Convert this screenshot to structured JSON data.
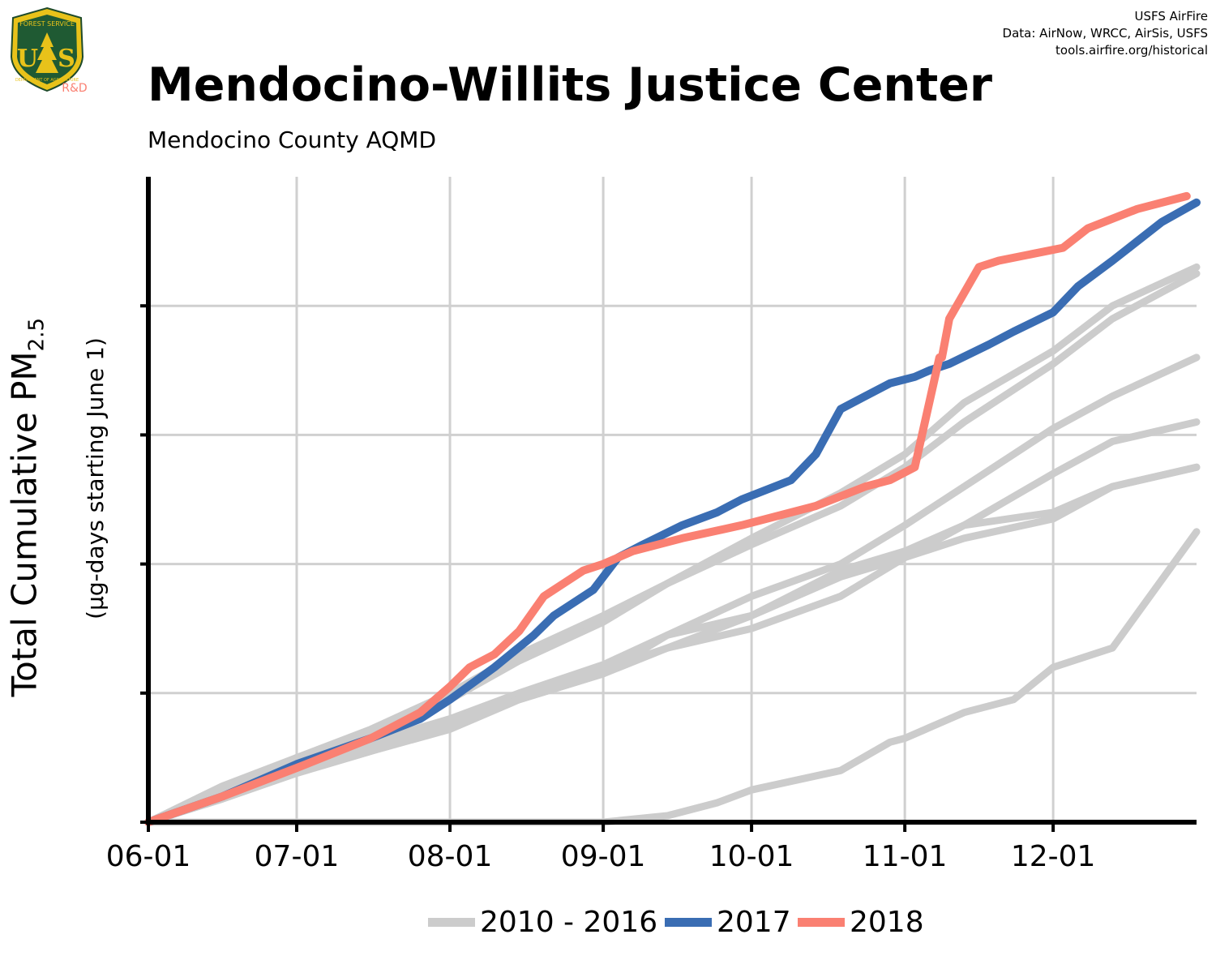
{
  "header": {
    "title": "Mendocino-Willits Justice Center",
    "subtitle": "Mendocino County AQMD",
    "attribution": [
      "USFS AirFire",
      "Data: AirNow, WRCC, AirSis, USFS",
      "tools.airfire.org/historical"
    ],
    "logo": {
      "top_text": "FOREST SERVICE",
      "letters": "US",
      "bottom_text": "DEPARTMENT OF AGRICULTURE",
      "badge": "R&D"
    }
  },
  "axis": {
    "ytitle": "Total Cumulative PM",
    "ytitle_sub": "2.5",
    "ysubtitle": "(µg-days starting June 1)"
  },
  "colors": {
    "historical": "#cccccc",
    "y2017": "#3a6db3",
    "y2018": "#fa8072",
    "grid": "#d0d0d0",
    "axis": "#000000"
  },
  "chart_data": {
    "type": "line",
    "xlabel": "",
    "ylabel": "Total Cumulative PM2.5",
    "x_ticks": [
      "06-01",
      "07-01",
      "08-01",
      "09-01",
      "10-01",
      "11-01",
      "12-01"
    ],
    "x_tick_days": [
      0,
      30,
      61,
      92,
      122,
      153,
      183
    ],
    "xlim_days": [
      0,
      212
    ],
    "ylim": [
      0,
      5
    ],
    "y_ticks": [
      1,
      2,
      3,
      4
    ],
    "y_tick_labels_shown": false,
    "grid": true,
    "legend": {
      "position": "bottom",
      "entries": [
        "2010 - 2016",
        "2017",
        "2018"
      ]
    },
    "series": [
      {
        "group": "2010 - 2016",
        "color": "#cccccc",
        "x": [
          0,
          15,
          30,
          45,
          61,
          75,
          92,
          105,
          122,
          140,
          153,
          165,
          183,
          195,
          212
        ],
        "y": [
          0,
          0.28,
          0.5,
          0.7,
          0.95,
          1.25,
          1.55,
          1.85,
          2.2,
          2.55,
          2.85,
          3.25,
          3.65,
          4.0,
          4.3
        ]
      },
      {
        "group": "2010 - 2016",
        "color": "#cccccc",
        "x": [
          0,
          15,
          30,
          45,
          61,
          75,
          92,
          105,
          122,
          140,
          153,
          165,
          183,
          195,
          212
        ],
        "y": [
          0,
          0.25,
          0.5,
          0.72,
          1.0,
          1.3,
          1.6,
          1.85,
          2.15,
          2.45,
          2.75,
          3.1,
          3.55,
          3.9,
          4.25
        ]
      },
      {
        "group": "2010 - 2016",
        "color": "#cccccc",
        "x": [
          0,
          15,
          30,
          45,
          61,
          75,
          92,
          105,
          122,
          140,
          153,
          165,
          183,
          195,
          212
        ],
        "y": [
          0,
          0.22,
          0.45,
          0.62,
          0.8,
          1.0,
          1.22,
          1.45,
          1.75,
          2.0,
          2.3,
          2.6,
          3.05,
          3.3,
          3.6
        ]
      },
      {
        "group": "2010 - 2016",
        "color": "#cccccc",
        "x": [
          0,
          15,
          30,
          45,
          61,
          75,
          92,
          105,
          122,
          140,
          153,
          165,
          183,
          195,
          212
        ],
        "y": [
          0,
          0.2,
          0.42,
          0.6,
          0.8,
          0.95,
          1.15,
          1.45,
          1.6,
          1.95,
          2.1,
          2.3,
          2.7,
          2.95,
          3.1
        ]
      },
      {
        "group": "2010 - 2016",
        "color": "#cccccc",
        "x": [
          0,
          15,
          30,
          45,
          61,
          75,
          92,
          105,
          122,
          140,
          153,
          165,
          183,
          195,
          212
        ],
        "y": [
          0,
          0.18,
          0.38,
          0.55,
          0.75,
          0.95,
          1.15,
          1.35,
          1.5,
          1.75,
          2.05,
          2.3,
          2.4,
          2.6,
          2.75
        ]
      },
      {
        "group": "2010 - 2016",
        "color": "#cccccc",
        "x": [
          0,
          15,
          30,
          45,
          61,
          75,
          92,
          105,
          122,
          140,
          153,
          165,
          183,
          195,
          212
        ],
        "y": [
          0,
          0.2,
          0.38,
          0.55,
          0.72,
          0.95,
          1.18,
          1.35,
          1.6,
          1.9,
          2.05,
          2.2,
          2.35,
          2.6,
          2.75
        ]
      },
      {
        "group": "2010 - 2016",
        "color": "#cccccc",
        "x": [
          0,
          30,
          61,
          92,
          105,
          115,
          122,
          140,
          150,
          153,
          165,
          175,
          183,
          195,
          212
        ],
        "y": [
          0,
          0,
          0,
          0,
          0.05,
          0.15,
          0.25,
          0.4,
          0.62,
          0.65,
          0.85,
          0.95,
          1.2,
          1.35,
          2.25
        ]
      },
      {
        "group": "2017",
        "color": "#3a6db3",
        "x": [
          0,
          15,
          30,
          45,
          55,
          61,
          70,
          78,
          82,
          90,
          95,
          100,
          108,
          115,
          120,
          130,
          135,
          140,
          145,
          150,
          155,
          158,
          162,
          170,
          175,
          183,
          188,
          195,
          205,
          212
        ],
        "y": [
          0,
          0.2,
          0.45,
          0.65,
          0.8,
          0.95,
          1.2,
          1.45,
          1.6,
          1.8,
          2.05,
          2.15,
          2.3,
          2.4,
          2.5,
          2.65,
          2.85,
          3.2,
          3.3,
          3.4,
          3.45,
          3.5,
          3.55,
          3.7,
          3.8,
          3.95,
          4.15,
          4.35,
          4.65,
          4.8
        ]
      },
      {
        "group": "2018",
        "color": "#fa8072",
        "x": [
          0,
          15,
          30,
          45,
          55,
          61,
          65,
          70,
          75,
          80,
          88,
          92,
          98,
          108,
          120,
          135,
          145,
          150,
          155,
          160,
          160.5,
          162,
          168,
          172,
          185,
          190,
          200,
          210
        ],
        "y": [
          0,
          0.2,
          0.42,
          0.65,
          0.85,
          1.05,
          1.2,
          1.3,
          1.48,
          1.75,
          1.95,
          2.0,
          2.1,
          2.2,
          2.3,
          2.45,
          2.6,
          2.65,
          2.75,
          3.6,
          3.6,
          3.9,
          4.3,
          4.35,
          4.45,
          4.6,
          4.75,
          4.85
        ]
      }
    ]
  }
}
